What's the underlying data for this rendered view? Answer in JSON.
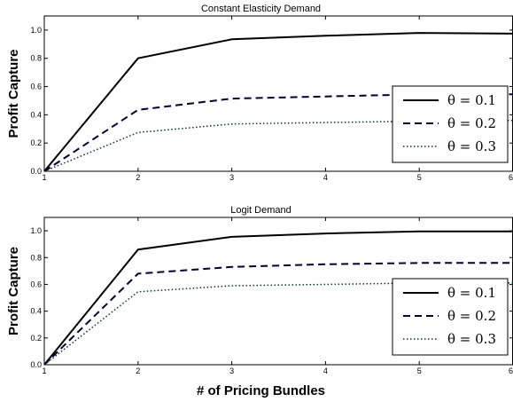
{
  "chart_data": [
    {
      "type": "line",
      "title": "Constant Elasticity Demand",
      "xlabel": "",
      "ylabel": "Profit Capture",
      "x": [
        1,
        2,
        3,
        4,
        5,
        6
      ],
      "xticks": [
        "1",
        "2",
        "3",
        "4",
        "5",
        "6"
      ],
      "yticks": [
        "0.0",
        "0.2",
        "0.4",
        "0.6",
        "0.8",
        "1.0"
      ],
      "xlim": [
        1,
        6
      ],
      "ylim": [
        0,
        1.1
      ],
      "grid": false,
      "legend_position": "bottom-right",
      "series": [
        {
          "name": "θ = 0.1",
          "style": "solid",
          "color": "#000000",
          "values": [
            0.0,
            0.8,
            0.935,
            0.96,
            0.98,
            0.975
          ]
        },
        {
          "name": "θ = 0.2",
          "style": "dashed",
          "color": "#000033",
          "values": [
            0.0,
            0.435,
            0.515,
            0.53,
            0.545,
            0.545
          ]
        },
        {
          "name": "θ = 0.3",
          "style": "dotted",
          "color": "#003333",
          "values": [
            0.0,
            0.275,
            0.335,
            0.345,
            0.355,
            0.36
          ]
        }
      ]
    },
    {
      "type": "line",
      "title": "Logit Demand",
      "xlabel": "# of Pricing Bundles",
      "ylabel": "Profit Capture",
      "x": [
        1,
        2,
        3,
        4,
        5,
        6
      ],
      "xticks": [
        "1",
        "2",
        "3",
        "4",
        "5",
        "6"
      ],
      "yticks": [
        "0.0",
        "0.2",
        "0.4",
        "0.6",
        "0.8",
        "1.0"
      ],
      "xlim": [
        1,
        6
      ],
      "ylim": [
        0,
        1.1
      ],
      "grid": false,
      "legend_position": "bottom-right",
      "series": [
        {
          "name": "θ = 0.1",
          "style": "solid",
          "color": "#000000",
          "values": [
            0.0,
            0.86,
            0.955,
            0.98,
            0.995,
            0.995
          ]
        },
        {
          "name": "θ = 0.2",
          "style": "dashed",
          "color": "#000033",
          "values": [
            0.0,
            0.68,
            0.73,
            0.75,
            0.76,
            0.76
          ]
        },
        {
          "name": "θ = 0.3",
          "style": "dotted",
          "color": "#003333",
          "values": [
            0.0,
            0.545,
            0.59,
            0.6,
            0.61,
            0.61
          ]
        }
      ]
    }
  ]
}
